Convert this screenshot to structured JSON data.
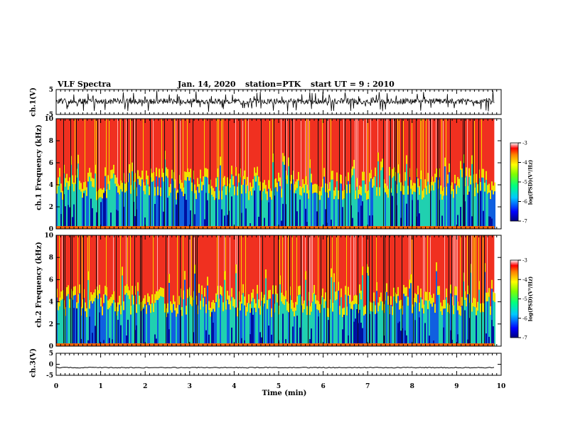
{
  "header": {
    "title": "VLF Spectra",
    "date": "Jan. 14, 2020",
    "station": "station=PTK",
    "start": "start UT = 9 : 2010"
  },
  "chart_data": [
    {
      "type": "line",
      "panel": "channel-1-waveform",
      "ylabel": "ch.1(V)",
      "xlim": [
        0,
        9.85
      ],
      "ylim": [
        -5,
        5
      ],
      "yticks": [
        "5",
        "-5"
      ],
      "baseline": 0.3,
      "burst_range": [
        -5,
        5
      ]
    },
    {
      "type": "heatmap",
      "panel": "channel-1-spectrogram",
      "ylabel": "ch.1 Frequency (kHz)",
      "xlim": [
        0,
        9.85
      ],
      "ylim": [
        0,
        10
      ],
      "yticks": [
        "0",
        "2",
        "4",
        "6",
        "8",
        "10"
      ],
      "mean_cutoff_khz": 4.5,
      "colorbar": {
        "label": "log(PSD)(V²/Hz)",
        "range": [
          -7,
          -3
        ],
        "ticks": [
          "-3",
          "-4",
          "-5",
          "-6",
          "-7"
        ]
      }
    },
    {
      "type": "heatmap",
      "panel": "channel-2-spectrogram",
      "ylabel": "ch.2 Frequency (kHz)",
      "xlim": [
        0,
        9.85
      ],
      "ylim": [
        0,
        10
      ],
      "yticks": [
        "0",
        "2",
        "4",
        "6",
        "8",
        "10"
      ],
      "mean_cutoff_khz": 4.5,
      "colorbar": {
        "label": "log(PSD)(V²/Hz)",
        "range": [
          -7,
          -3
        ],
        "ticks": [
          "-3",
          "-4",
          "-5",
          "-6",
          "-7"
        ]
      }
    },
    {
      "type": "line",
      "panel": "channel-3-waveform",
      "ylabel": "ch.3(V)",
      "xlim": [
        0,
        9.85
      ],
      "ylim": [
        -5,
        5
      ],
      "yticks": [
        "5",
        "0",
        "-5"
      ],
      "baseline": -1.5
    }
  ],
  "x_axis": {
    "label": "Time (min)",
    "range": [
      0,
      10
    ],
    "ticks": [
      "0",
      "1",
      "2",
      "3",
      "4",
      "5",
      "6",
      "7",
      "8",
      "9",
      "10"
    ]
  }
}
